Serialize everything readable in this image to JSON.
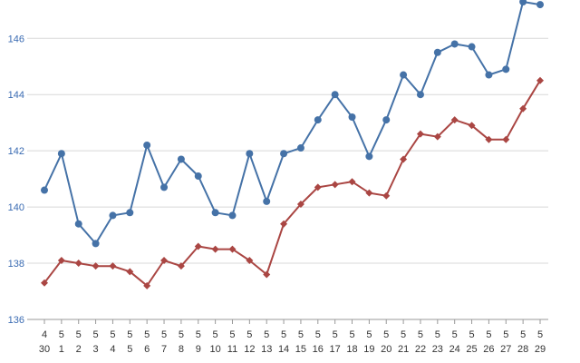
{
  "chart_data": {
    "type": "line",
    "title": "",
    "xlabel": "",
    "ylabel": "",
    "x": [
      "4/30",
      "5/1",
      "5/2",
      "5/3",
      "5/4",
      "5/5",
      "5/6",
      "5/7",
      "5/8",
      "5/9",
      "5/10",
      "5/11",
      "5/12",
      "5/13",
      "5/14",
      "5/15",
      "5/16",
      "5/17",
      "5/18",
      "5/19",
      "5/20",
      "5/21",
      "5/22",
      "5/23",
      "5/24",
      "5/25",
      "5/26",
      "5/27",
      "5/28",
      "5/29"
    ],
    "x_tick_labels": [
      {
        "month": "4",
        "day": "30"
      },
      {
        "month": "5",
        "day": "1"
      },
      {
        "month": "5",
        "day": "2"
      },
      {
        "month": "5",
        "day": "3"
      },
      {
        "month": "5",
        "day": "4"
      },
      {
        "month": "5",
        "day": "5"
      },
      {
        "month": "5",
        "day": "6"
      },
      {
        "month": "5",
        "day": "7"
      },
      {
        "month": "5",
        "day": "8"
      },
      {
        "month": "5",
        "day": "9"
      },
      {
        "month": "5",
        "day": "10"
      },
      {
        "month": "5",
        "day": "11"
      },
      {
        "month": "5",
        "day": "12"
      },
      {
        "month": "5",
        "day": "13"
      },
      {
        "month": "5",
        "day": "14"
      },
      {
        "month": "5",
        "day": "15"
      },
      {
        "month": "5",
        "day": "16"
      },
      {
        "month": "5",
        "day": "17"
      },
      {
        "month": "5",
        "day": "18"
      },
      {
        "month": "5",
        "day": "19"
      },
      {
        "month": "5",
        "day": "20"
      },
      {
        "month": "5",
        "day": "21"
      },
      {
        "month": "5",
        "day": "22"
      },
      {
        "month": "5",
        "day": "23"
      },
      {
        "month": "5",
        "day": "24"
      },
      {
        "month": "5",
        "day": "25"
      },
      {
        "month": "5",
        "day": "26"
      },
      {
        "month": "5",
        "day": "27"
      },
      {
        "month": "5",
        "day": "28"
      },
      {
        "month": "5",
        "day": "29"
      }
    ],
    "ylim": [
      136,
      147.3
    ],
    "yticks": [
      "136",
      "138",
      "140",
      "142",
      "144",
      "146"
    ],
    "grid": true,
    "series": [
      {
        "color": "#4572a7",
        "marker": "circle",
        "values": [
          140.6,
          141.9,
          139.4,
          138.7,
          139.7,
          139.8,
          142.2,
          140.7,
          141.7,
          141.1,
          139.8,
          139.7,
          141.9,
          140.2,
          141.9,
          142.1,
          143.1,
          144.0,
          143.2,
          141.8,
          143.1,
          144.7,
          144.0,
          145.5,
          145.8,
          145.7,
          144.7,
          144.9,
          147.3,
          147.2
        ]
      },
      {
        "color": "#aa4643",
        "marker": "diamond",
        "values": [
          137.3,
          138.1,
          138.0,
          137.9,
          137.9,
          137.7,
          137.2,
          138.1,
          137.9,
          138.6,
          138.5,
          138.5,
          138.1,
          137.6,
          139.4,
          140.1,
          140.7,
          140.8,
          140.9,
          140.5,
          140.4,
          141.7,
          142.6,
          142.5,
          143.1,
          142.9,
          142.4,
          142.4,
          143.5,
          144.5
        ]
      }
    ]
  }
}
